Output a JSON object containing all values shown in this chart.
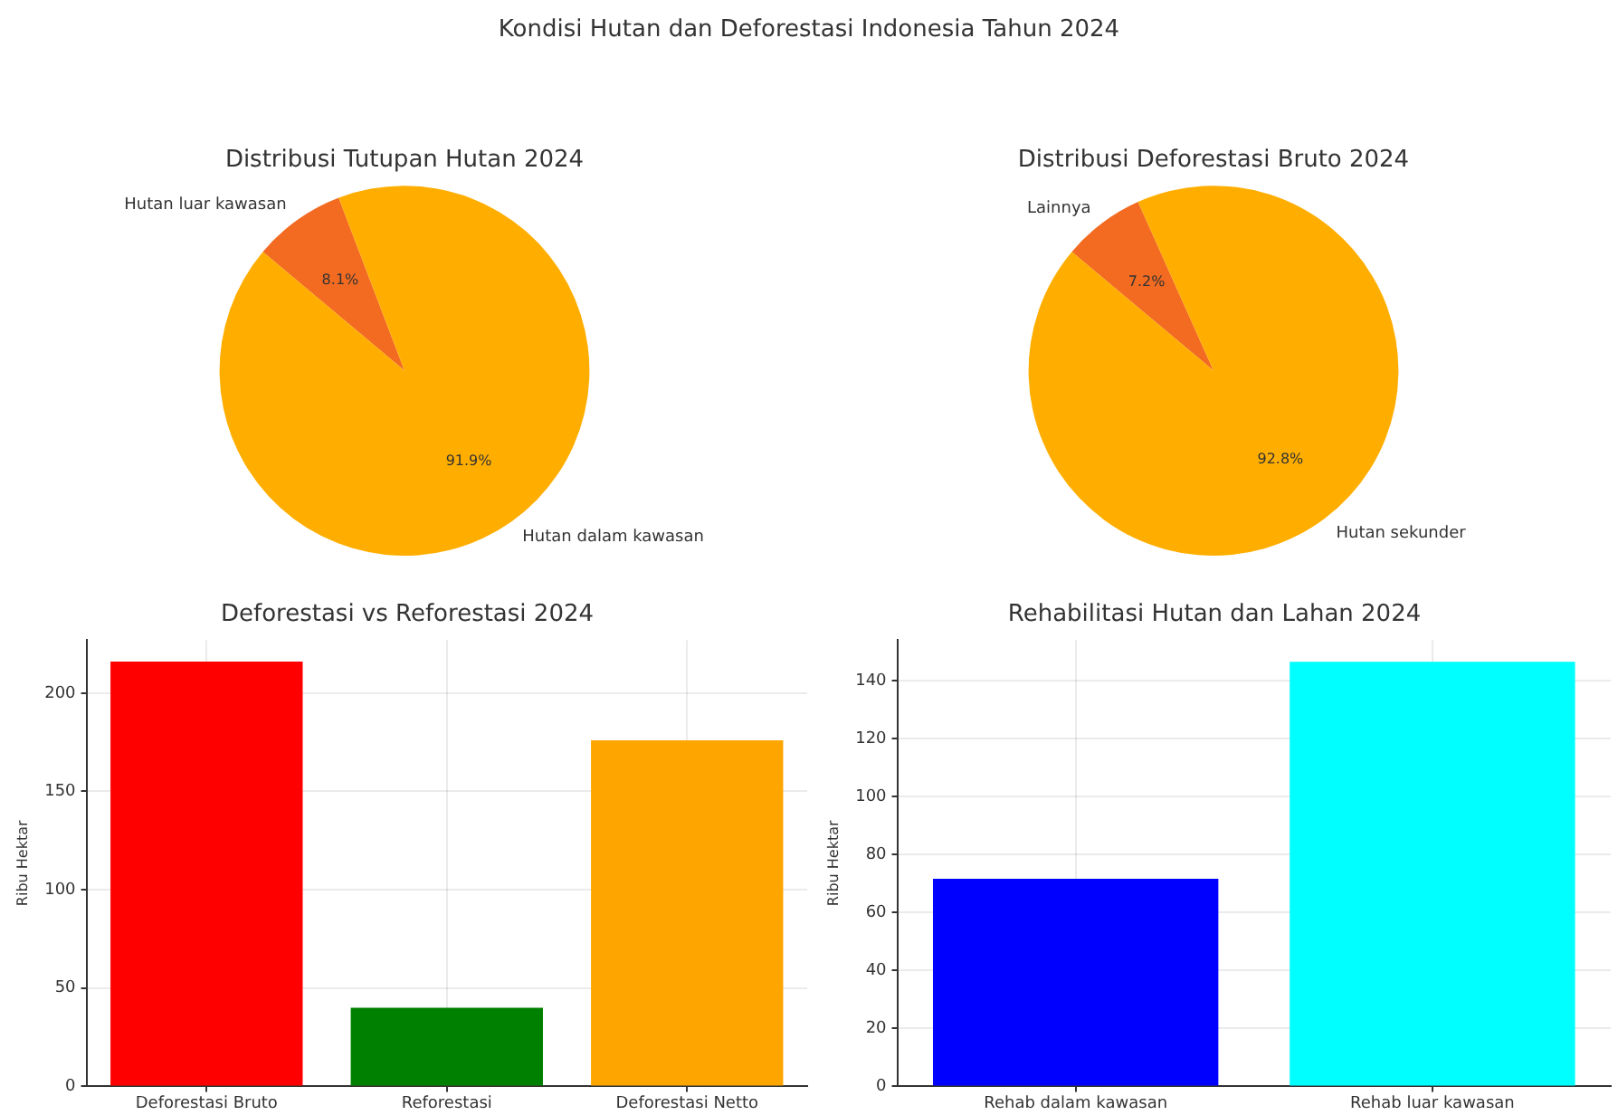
{
  "chart_data": [
    {
      "type": "other",
      "title": "Kondisi Hutan dan Deforestasi Indonesia Tahun 2024"
    },
    {
      "type": "pie",
      "title": "Distribusi Tutupan Hutan 2024",
      "categories": [
        "Hutan luar kawasan",
        "Hutan dalam kawasan"
      ],
      "values": [
        8.1,
        91.9
      ],
      "colors": [
        "#f26b21",
        "#ffae00"
      ],
      "value_labels": [
        "8.1%",
        "91.9%"
      ]
    },
    {
      "type": "pie",
      "title": "Distribusi Deforestasi Bruto 2024",
      "categories": [
        "Lainnya",
        "Hutan sekunder"
      ],
      "values": [
        7.2,
        92.8
      ],
      "colors": [
        "#f26b21",
        "#ffae00"
      ],
      "value_labels": [
        "7.2%",
        "92.8%"
      ]
    },
    {
      "type": "bar",
      "title": "Deforestasi vs Reforestasi 2024",
      "ylabel": "Ribu Hektar",
      "categories": [
        "Deforestasi Bruto",
        "Reforestasi",
        "Deforestasi Netto"
      ],
      "values": [
        216,
        40,
        176
      ],
      "colors": [
        "#ff0000",
        "#008000",
        "#ffa500"
      ],
      "ylim": [
        0,
        227
      ],
      "yticks": [
        0,
        50,
        100,
        150,
        200
      ],
      "grid": true
    },
    {
      "type": "bar",
      "title": "Rehabilitasi Hutan dan Lahan 2024",
      "ylabel": "Ribu Hektar",
      "categories": [
        "Rehab dalam kawasan",
        "Rehab luar kawasan"
      ],
      "values": [
        71.6,
        146.5
      ],
      "colors": [
        "#0000ff",
        "#00ffff"
      ],
      "ylim": [
        0,
        154
      ],
      "yticks": [
        0,
        20,
        40,
        60,
        80,
        100,
        120,
        140
      ],
      "grid": true
    }
  ]
}
